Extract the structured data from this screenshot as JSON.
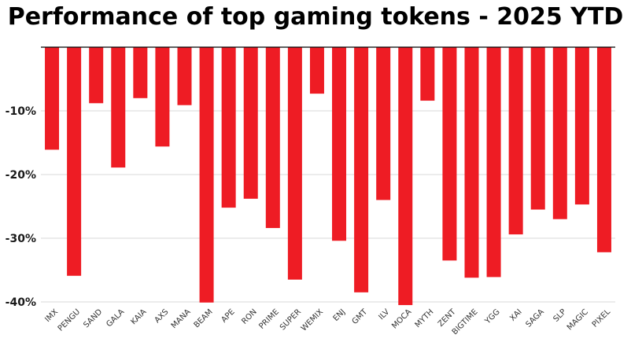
{
  "chart_data": {
    "type": "bar",
    "title": "Performance of top gaming tokens - 2025 YTD",
    "xlabel": "",
    "ylabel": "",
    "ylim": [
      -40.5,
      0
    ],
    "y_ticks": [
      -10,
      -20,
      -30,
      -40
    ],
    "y_tick_labels": [
      "-10%",
      "-20%",
      "-30%",
      "-40%"
    ],
    "grid": true,
    "legend": "none",
    "bar_color": "#ee1c24",
    "categories": [
      "IMX",
      "PENGU",
      "SAND",
      "GALA",
      "KAIA",
      "AXS",
      "MANA",
      "BEAM",
      "APE",
      "RON",
      "PRIME",
      "SUPER",
      "WEMIX",
      "ENJ",
      "GMT",
      "ILV",
      "MOCA",
      "MYTH",
      "ZENT",
      "BIGTIME",
      "YGG",
      "XAI",
      "SAGA",
      "SLP",
      "MAGIC",
      "PIXEL"
    ],
    "values": [
      -16.1,
      -35.9,
      -8.8,
      -18.9,
      -8.0,
      -15.6,
      -9.1,
      -40.1,
      -25.2,
      -23.8,
      -28.4,
      -36.5,
      -7.3,
      -30.4,
      -38.5,
      -24.0,
      -40.5,
      -8.4,
      -33.5,
      -36.2,
      -36.1,
      -29.4,
      -25.5,
      -27.0,
      -24.7,
      -32.2
    ]
  }
}
